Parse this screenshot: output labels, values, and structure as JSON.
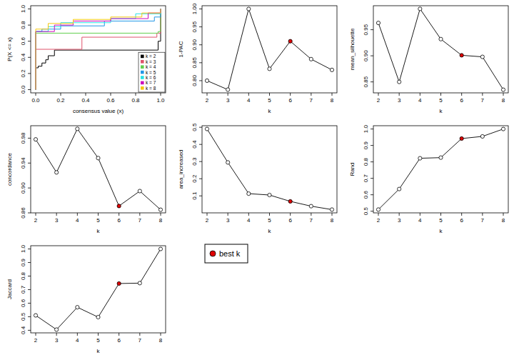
{
  "chart_data": [
    {
      "type": "line",
      "line_style": "step",
      "x_label": "consensus value (x)",
      "y_label": "P(X <= x)",
      "legend": "bottomright",
      "xlim": [
        -0.04,
        1.04
      ],
      "ylim": [
        -0.04,
        1.04
      ],
      "xticks": [
        {
          "value": 0,
          "label": "0.0"
        },
        {
          "value": 0.2,
          "label": "0.2"
        },
        {
          "value": 0.4,
          "label": "0.4"
        },
        {
          "value": 0.6,
          "label": "0.6"
        },
        {
          "value": 0.8,
          "label": "0.8"
        },
        {
          "value": 1,
          "label": "1.0"
        }
      ],
      "yticks": [
        {
          "value": 0,
          "label": "0.0"
        },
        {
          "value": 0.2,
          "label": "0.2"
        },
        {
          "value": 0.4,
          "label": "0.4"
        },
        {
          "value": 0.6,
          "label": "0.6"
        },
        {
          "value": 0.8,
          "label": "0.8"
        },
        {
          "value": 1,
          "label": "1.0"
        }
      ],
      "series": [
        {
          "name": "k = 2",
          "color": "#000000",
          "x": [
            0,
            0,
            0.02,
            0.05,
            0.08,
            0.1,
            0.15,
            0.98,
            1
          ],
          "values": [
            0,
            0.27,
            0.29,
            0.33,
            0.37,
            0.42,
            0.49,
            0.6,
            1
          ]
        },
        {
          "name": "k = 3",
          "color": "#DF536B",
          "x": [
            0,
            0,
            0.37,
            0.97,
            1
          ],
          "values": [
            0,
            0.5,
            0.65,
            0.7,
            1
          ]
        },
        {
          "name": "k = 4",
          "color": "#61D04F",
          "x": [
            0,
            0,
            0.98,
            1
          ],
          "values": [
            0,
            0.7,
            0.72,
            1
          ]
        },
        {
          "name": "k = 5",
          "color": "#2297E6",
          "x": [
            0,
            0,
            0.05,
            0.2,
            0.55,
            0.95,
            1
          ],
          "values": [
            0,
            0.72,
            0.75,
            0.79,
            0.85,
            0.9,
            1
          ]
        },
        {
          "name": "k = 6",
          "color": "#28E2E5",
          "x": [
            0,
            0,
            0.1,
            0.2,
            0.6,
            0.8,
            1
          ],
          "values": [
            0,
            0.72,
            0.78,
            0.83,
            0.88,
            0.94,
            1
          ]
        },
        {
          "name": "k = 7",
          "color": "#CD0BBC",
          "x": [
            0,
            0,
            0.15,
            0.3,
            0.6,
            0.9,
            1
          ],
          "values": [
            0,
            0.72,
            0.8,
            0.85,
            0.88,
            0.95,
            1
          ]
        },
        {
          "name": "k = 8",
          "color": "#F5C710",
          "x": [
            0,
            0,
            0.1,
            0.3,
            0.6,
            0.85,
            1
          ],
          "values": [
            0,
            0.75,
            0.82,
            0.87,
            0.9,
            0.95,
            1
          ]
        }
      ]
    },
    {
      "type": "line",
      "marker": "circle",
      "x_label": "k",
      "y_label": "1-PAC",
      "color": "#000000",
      "x": [
        2,
        3,
        4,
        5,
        6,
        7,
        8
      ],
      "values": [
        0.8,
        0.775,
        1.0,
        0.833,
        0.91,
        0.86,
        0.83
      ],
      "colors": [
        "#ffffff",
        "#ffffff",
        "#ffffff",
        "#ffffff",
        "#e00000",
        "#ffffff",
        "#ffffff"
      ],
      "xlim": [
        1.76,
        8.24
      ],
      "ylim": [
        0.766,
        1.009
      ],
      "xticks": [
        2,
        3,
        4,
        5,
        6,
        7,
        8
      ],
      "yticks": [
        {
          "value": 0.8,
          "label": "0.80"
        },
        {
          "value": 0.85,
          "label": "0.85"
        },
        {
          "value": 0.9,
          "label": "0.90"
        },
        {
          "value": 0.95,
          "label": "0.95"
        },
        {
          "value": 1,
          "label": "1.00"
        }
      ]
    },
    {
      "type": "line",
      "marker": "circle",
      "x_label": "k",
      "y_label": "mean_silhouette",
      "color": "#000000",
      "x": [
        2,
        3,
        4,
        5,
        6,
        7,
        8
      ],
      "values": [
        0.963,
        0.85,
        0.99,
        0.932,
        0.901,
        0.898,
        0.835
      ],
      "colors": [
        "#ffffff",
        "#ffffff",
        "#ffffff",
        "#ffffff",
        "#e00000",
        "#ffffff",
        "#ffffff"
      ],
      "xlim": [
        1.76,
        8.24
      ],
      "ylim": [
        0.829,
        0.996
      ],
      "xticks": [
        2,
        3,
        4,
        5,
        6,
        7,
        8
      ],
      "yticks": [
        {
          "value": 0.85,
          "label": "0.85"
        },
        {
          "value": 0.9,
          "label": "0.90"
        },
        {
          "value": 0.95,
          "label": "0.95"
        }
      ]
    },
    {
      "type": "line",
      "marker": "circle",
      "x_label": "k",
      "y_label": "concordance",
      "color": "#000000",
      "x": [
        2,
        3,
        4,
        5,
        6,
        7,
        8
      ],
      "values": [
        0.978,
        0.925,
        0.995,
        0.948,
        0.871,
        0.895,
        0.865
      ],
      "colors": [
        "#ffffff",
        "#ffffff",
        "#ffffff",
        "#ffffff",
        "#e00000",
        "#ffffff",
        "#ffffff"
      ],
      "xlim": [
        1.76,
        8.24
      ],
      "ylim": [
        0.86,
        1.0
      ],
      "xticks": [
        2,
        3,
        4,
        5,
        6,
        7,
        8
      ],
      "yticks": [
        0.86,
        {
          "value": 0.9,
          "label": "0.90"
        },
        0.94,
        0.98
      ]
    },
    {
      "type": "line",
      "marker": "circle",
      "x_label": "k",
      "y_label": "area_increased",
      "color": "#000000",
      "x": [
        2,
        3,
        4,
        5,
        6,
        7,
        8
      ],
      "values": [
        0.49,
        0.295,
        0.113,
        0.105,
        0.068,
        0.04,
        0.02
      ],
      "colors": [
        "#ffffff",
        "#ffffff",
        "#ffffff",
        "#ffffff",
        "#e00000",
        "#ffffff",
        "#ffffff"
      ],
      "xlim": [
        1.76,
        8.24
      ],
      "ylim": [
        0.001,
        0.509
      ],
      "xticks": [
        2,
        3,
        4,
        5,
        6,
        7,
        8
      ],
      "yticks": [
        0.1,
        0.2,
        0.3,
        0.4,
        0.5
      ]
    },
    {
      "type": "line",
      "marker": "circle",
      "x_label": "k",
      "y_label": "Rand",
      "color": "#000000",
      "x": [
        2,
        3,
        4,
        5,
        6,
        7,
        8
      ],
      "values": [
        0.51,
        0.635,
        0.822,
        0.826,
        0.942,
        0.955,
        1.0
      ],
      "colors": [
        "#ffffff",
        "#ffffff",
        "#ffffff",
        "#ffffff",
        "#e00000",
        "#ffffff",
        "#ffffff"
      ],
      "xlim": [
        1.76,
        8.24
      ],
      "ylim": [
        0.49,
        1.02
      ],
      "xticks": [
        2,
        3,
        4,
        5,
        6,
        7,
        8
      ],
      "yticks": [
        0.5,
        0.6,
        0.7,
        0.8,
        0.9,
        {
          "value": 1,
          "label": "1.0"
        }
      ]
    },
    {
      "type": "line",
      "marker": "circle",
      "x_label": "k",
      "y_label": "Jaccard",
      "color": "#000000",
      "x": [
        2,
        3,
        4,
        5,
        6,
        7,
        8
      ],
      "values": [
        0.51,
        0.405,
        0.57,
        0.497,
        0.745,
        0.748,
        1.0
      ],
      "colors": [
        "#ffffff",
        "#ffffff",
        "#ffffff",
        "#ffffff",
        "#e00000",
        "#ffffff",
        "#ffffff"
      ],
      "xlim": [
        1.76,
        8.24
      ],
      "ylim": [
        0.381,
        1.024
      ],
      "xticks": [
        2,
        3,
        4,
        5,
        6,
        7,
        8
      ],
      "yticks": [
        0.4,
        0.5,
        0.6,
        0.7,
        0.8,
        0.9,
        {
          "value": 1,
          "label": "1.0"
        }
      ]
    },
    {
      "type": "legend",
      "series": [
        {
          "name": "best k",
          "color": "#e00000",
          "marker": "circle"
        }
      ]
    }
  ]
}
